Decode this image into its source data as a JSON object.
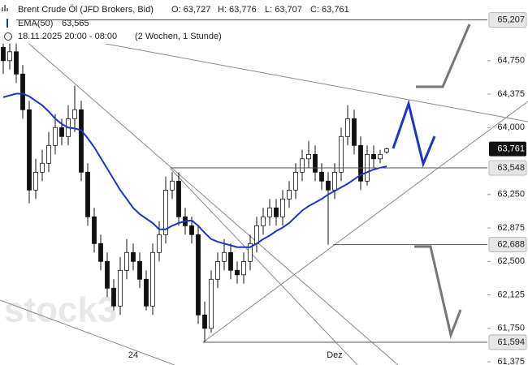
{
  "chart_data": {
    "type": "candlestick",
    "header": {
      "title": "Brent Crude Öl (JFD Brokers, Bid)",
      "ohlc": [
        "O: 63,727",
        "H: 63,776",
        "L: 63,707",
        "C: 63,761"
      ],
      "ema_value": "63,565",
      "range": "18.11.2025 20:00 - 08:00",
      "period": "(2 Wochen, 1 Stunde)"
    },
    "watermark": "stock3",
    "categories": [
      null,
      null,
      null,
      null,
      null,
      null,
      null,
      null,
      null,
      null,
      null,
      null,
      null,
      null,
      null,
      null,
      null,
      null,
      null,
      null,
      "24",
      null,
      null,
      null,
      null,
      null,
      null,
      null,
      null,
      null,
      null,
      null,
      null,
      null,
      null,
      null,
      null,
      null,
      null,
      null,
      null,
      null,
      null,
      null,
      null,
      null,
      null,
      null,
      null,
      null,
      null,
      "Dez",
      null,
      null,
      null,
      null,
      null,
      null,
      null,
      null
    ],
    "open": [
      64.9,
      64.75,
      64.85,
      64.6,
      64.2,
      63.3,
      63.5,
      63.6,
      63.8,
      64.0,
      63.9,
      64.1,
      64.2,
      63.5,
      63.0,
      62.7,
      62.5,
      62.2,
      62.0,
      62.4,
      62.6,
      62.5,
      62.3,
      62.0,
      62.6,
      62.8,
      63.3,
      63.4,
      63.0,
      62.9,
      62.8,
      61.9,
      61.75,
      62.3,
      62.5,
      62.6,
      62.4,
      62.35,
      62.5,
      62.7,
      62.9,
      63.0,
      63.1,
      63.0,
      63.2,
      63.3,
      63.5,
      63.65,
      63.7,
      63.5,
      63.4,
      63.3,
      63.5,
      63.9,
      64.1,
      63.8,
      63.4,
      63.7,
      63.65,
      63.727
    ],
    "high": [
      65.02,
      65.05,
      64.95,
      64.7,
      64.3,
      63.65,
      63.75,
      63.95,
      64.15,
      64.1,
      64.25,
      64.47,
      64.3,
      63.6,
      63.1,
      62.8,
      62.6,
      62.3,
      62.55,
      62.75,
      62.7,
      62.6,
      62.4,
      62.7,
      62.95,
      63.45,
      63.5,
      63.5,
      63.1,
      63.0,
      62.9,
      62.05,
      62.4,
      62.6,
      62.75,
      62.7,
      62.5,
      62.6,
      62.8,
      63.0,
      63.1,
      63.2,
      63.2,
      63.3,
      63.4,
      63.6,
      63.75,
      63.85,
      63.8,
      63.6,
      63.5,
      63.6,
      64.0,
      64.25,
      64.2,
      63.9,
      63.8,
      63.8,
      63.75,
      63.776
    ],
    "low": [
      64.6,
      64.65,
      64.5,
      64.1,
      63.15,
      63.2,
      63.4,
      63.5,
      63.7,
      63.8,
      63.8,
      63.95,
      63.4,
      62.9,
      62.6,
      62.4,
      62.1,
      61.95,
      61.9,
      62.3,
      62.4,
      62.2,
      61.95,
      61.9,
      62.5,
      62.7,
      63.2,
      62.9,
      62.8,
      62.7,
      61.8,
      61.594,
      61.7,
      62.2,
      62.4,
      62.3,
      62.25,
      62.25,
      62.4,
      62.6,
      62.8,
      62.9,
      62.9,
      62.9,
      63.1,
      63.2,
      63.4,
      63.55,
      63.4,
      63.3,
      62.688,
      63.2,
      63.4,
      63.8,
      63.7,
      63.3,
      63.35,
      63.55,
      63.6,
      63.707
    ],
    "close": [
      64.75,
      64.85,
      64.6,
      64.2,
      63.3,
      63.5,
      63.6,
      63.8,
      64.0,
      63.9,
      64.1,
      64.2,
      63.5,
      63.0,
      62.7,
      62.5,
      62.2,
      62.0,
      62.4,
      62.6,
      62.5,
      62.3,
      62.0,
      62.6,
      62.8,
      63.3,
      63.4,
      63.0,
      62.9,
      62.8,
      61.9,
      61.75,
      62.3,
      62.5,
      62.6,
      62.4,
      62.35,
      62.5,
      62.7,
      62.9,
      63.0,
      63.1,
      63.0,
      63.2,
      63.3,
      63.5,
      63.65,
      63.7,
      63.5,
      63.4,
      63.3,
      63.5,
      63.9,
      64.1,
      63.8,
      63.4,
      63.7,
      63.65,
      63.7,
      63.761
    ],
    "series": [
      {
        "name": "EMA(50)",
        "color": "#1c35c8",
        "values": [
          64.34,
          64.36,
          64.38,
          64.38,
          64.35,
          64.3,
          64.25,
          64.18,
          64.1,
          64.04,
          64.0,
          63.99,
          63.97,
          63.88,
          63.78,
          63.66,
          63.54,
          63.42,
          63.3,
          63.2,
          63.1,
          63.03,
          62.98,
          62.93,
          62.86,
          62.86,
          62.9,
          62.93,
          62.95,
          62.96,
          62.9,
          62.82,
          62.75,
          62.72,
          62.7,
          62.68,
          62.66,
          62.66,
          62.66,
          62.7,
          62.75,
          62.79,
          62.84,
          62.88,
          62.93,
          63.0,
          63.07,
          63.12,
          63.16,
          63.2,
          63.25,
          63.29,
          63.33,
          63.37,
          63.42,
          63.47,
          63.5,
          63.53,
          63.55,
          63.565
        ]
      }
    ],
    "ylim": [
      61.339,
      65.43
    ],
    "yticks": [
      {
        "value": 61.375,
        "label": "61,375"
      },
      {
        "value": 61.75,
        "label": "61,750"
      },
      {
        "value": 62.125,
        "label": "62,125"
      },
      {
        "value": 62.5,
        "label": "62,500"
      },
      {
        "value": 62.875,
        "label": "62,875"
      },
      {
        "value": 63.25,
        "label": "63,250"
      },
      {
        "value": 64.0,
        "label": "64,000"
      },
      {
        "value": 64.375,
        "label": "64,375"
      },
      {
        "value": 64.75,
        "label": "64,750"
      }
    ],
    "levels": [
      {
        "value": 65.207,
        "label": "65,207"
      },
      {
        "value": 63.548,
        "label": "63,548"
      },
      {
        "value": 62.688,
        "label": "62,688"
      },
      {
        "value": 61.594,
        "label": "61,594"
      }
    ],
    "last_price": {
      "value": 63.761,
      "label": "63,761"
    }
  }
}
